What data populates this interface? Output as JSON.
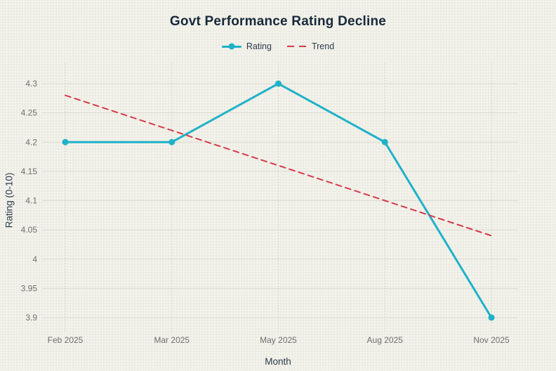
{
  "page": {
    "title": "Govt Performance Rating Decline"
  },
  "chart_data": {
    "type": "line",
    "title": "Govt Performance Rating Decline",
    "categories": [
      "Feb 2025",
      "Mar 2025",
      "May 2025",
      "Aug 2025",
      "Nov 2025"
    ],
    "series": [
      {
        "name": "Rating",
        "color": "#1fb1c9",
        "style": "solid",
        "markers": true,
        "values": [
          4.2,
          4.2,
          4.3,
          4.2,
          3.9
        ]
      },
      {
        "name": "Trend",
        "color": "#d63a4a",
        "style": "dashed",
        "markers": false,
        "values": [
          4.28,
          4.22,
          4.16,
          4.1,
          4.04
        ]
      }
    ],
    "xlabel": "Month",
    "ylabel": "Rating (0-10)",
    "ylim": [
      3.9,
      4.3
    ],
    "yticks": [
      3.9,
      3.95,
      4,
      4.05,
      4.1,
      4.15,
      4.2,
      4.25,
      4.3
    ],
    "ytick_labels": [
      "3.9",
      "3.95",
      "4",
      "4.05",
      "4.1",
      "4.15",
      "4.2",
      "4.25",
      "4.3"
    ],
    "grid": true,
    "legend_position": "top-center"
  },
  "legend": {
    "items": [
      {
        "label": "Rating",
        "color": "#1fb1c9",
        "style": "solid-line-with-dot-marker"
      },
      {
        "label": "Trend",
        "color": "#d63a4a",
        "style": "dashed-line"
      }
    ]
  },
  "colors": {
    "background": "#eeede4",
    "grid_horizontal": "#dcdad0",
    "grid_vertical": "#d6d4ca",
    "title": "#16293a",
    "axis_title": "#2d3b4e",
    "tick_label": "#6f6f6f",
    "rating": "#1fb1c9",
    "trend": "#d63a4a"
  }
}
